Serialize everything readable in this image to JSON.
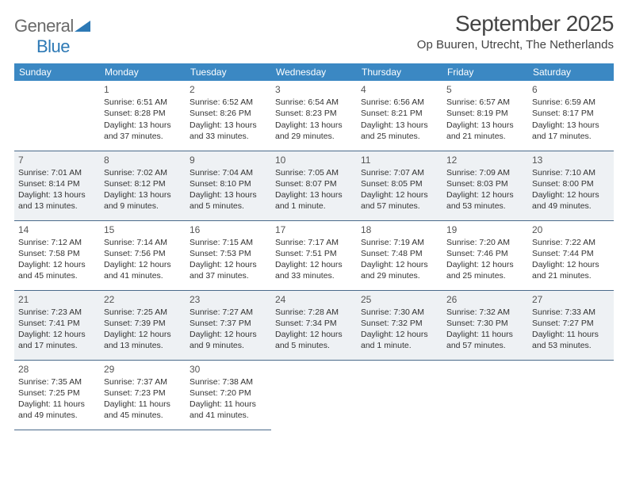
{
  "brand": {
    "part1": "General",
    "part2": "Blue"
  },
  "title": "September 2025",
  "location": "Op Buuren, Utrecht, The Netherlands",
  "colors": {
    "header_bg": "#3b88c3",
    "header_fg": "#ffffff",
    "shaded_bg": "#eef1f4",
    "rule": "#4a6a8a",
    "text": "#333333"
  },
  "weekdays": [
    "Sunday",
    "Monday",
    "Tuesday",
    "Wednesday",
    "Thursday",
    "Friday",
    "Saturday"
  ],
  "weeks": [
    {
      "shaded": false,
      "days": [
        {
          "n": "",
          "sunrise": "",
          "sunset": "",
          "daylight": ""
        },
        {
          "n": "1",
          "sunrise": "Sunrise: 6:51 AM",
          "sunset": "Sunset: 8:28 PM",
          "daylight": "Daylight: 13 hours and 37 minutes."
        },
        {
          "n": "2",
          "sunrise": "Sunrise: 6:52 AM",
          "sunset": "Sunset: 8:26 PM",
          "daylight": "Daylight: 13 hours and 33 minutes."
        },
        {
          "n": "3",
          "sunrise": "Sunrise: 6:54 AM",
          "sunset": "Sunset: 8:23 PM",
          "daylight": "Daylight: 13 hours and 29 minutes."
        },
        {
          "n": "4",
          "sunrise": "Sunrise: 6:56 AM",
          "sunset": "Sunset: 8:21 PM",
          "daylight": "Daylight: 13 hours and 25 minutes."
        },
        {
          "n": "5",
          "sunrise": "Sunrise: 6:57 AM",
          "sunset": "Sunset: 8:19 PM",
          "daylight": "Daylight: 13 hours and 21 minutes."
        },
        {
          "n": "6",
          "sunrise": "Sunrise: 6:59 AM",
          "sunset": "Sunset: 8:17 PM",
          "daylight": "Daylight: 13 hours and 17 minutes."
        }
      ]
    },
    {
      "shaded": true,
      "days": [
        {
          "n": "7",
          "sunrise": "Sunrise: 7:01 AM",
          "sunset": "Sunset: 8:14 PM",
          "daylight": "Daylight: 13 hours and 13 minutes."
        },
        {
          "n": "8",
          "sunrise": "Sunrise: 7:02 AM",
          "sunset": "Sunset: 8:12 PM",
          "daylight": "Daylight: 13 hours and 9 minutes."
        },
        {
          "n": "9",
          "sunrise": "Sunrise: 7:04 AM",
          "sunset": "Sunset: 8:10 PM",
          "daylight": "Daylight: 13 hours and 5 minutes."
        },
        {
          "n": "10",
          "sunrise": "Sunrise: 7:05 AM",
          "sunset": "Sunset: 8:07 PM",
          "daylight": "Daylight: 13 hours and 1 minute."
        },
        {
          "n": "11",
          "sunrise": "Sunrise: 7:07 AM",
          "sunset": "Sunset: 8:05 PM",
          "daylight": "Daylight: 12 hours and 57 minutes."
        },
        {
          "n": "12",
          "sunrise": "Sunrise: 7:09 AM",
          "sunset": "Sunset: 8:03 PM",
          "daylight": "Daylight: 12 hours and 53 minutes."
        },
        {
          "n": "13",
          "sunrise": "Sunrise: 7:10 AM",
          "sunset": "Sunset: 8:00 PM",
          "daylight": "Daylight: 12 hours and 49 minutes."
        }
      ]
    },
    {
      "shaded": false,
      "days": [
        {
          "n": "14",
          "sunrise": "Sunrise: 7:12 AM",
          "sunset": "Sunset: 7:58 PM",
          "daylight": "Daylight: 12 hours and 45 minutes."
        },
        {
          "n": "15",
          "sunrise": "Sunrise: 7:14 AM",
          "sunset": "Sunset: 7:56 PM",
          "daylight": "Daylight: 12 hours and 41 minutes."
        },
        {
          "n": "16",
          "sunrise": "Sunrise: 7:15 AM",
          "sunset": "Sunset: 7:53 PM",
          "daylight": "Daylight: 12 hours and 37 minutes."
        },
        {
          "n": "17",
          "sunrise": "Sunrise: 7:17 AM",
          "sunset": "Sunset: 7:51 PM",
          "daylight": "Daylight: 12 hours and 33 minutes."
        },
        {
          "n": "18",
          "sunrise": "Sunrise: 7:19 AM",
          "sunset": "Sunset: 7:48 PM",
          "daylight": "Daylight: 12 hours and 29 minutes."
        },
        {
          "n": "19",
          "sunrise": "Sunrise: 7:20 AM",
          "sunset": "Sunset: 7:46 PM",
          "daylight": "Daylight: 12 hours and 25 minutes."
        },
        {
          "n": "20",
          "sunrise": "Sunrise: 7:22 AM",
          "sunset": "Sunset: 7:44 PM",
          "daylight": "Daylight: 12 hours and 21 minutes."
        }
      ]
    },
    {
      "shaded": true,
      "days": [
        {
          "n": "21",
          "sunrise": "Sunrise: 7:23 AM",
          "sunset": "Sunset: 7:41 PM",
          "daylight": "Daylight: 12 hours and 17 minutes."
        },
        {
          "n": "22",
          "sunrise": "Sunrise: 7:25 AM",
          "sunset": "Sunset: 7:39 PM",
          "daylight": "Daylight: 12 hours and 13 minutes."
        },
        {
          "n": "23",
          "sunrise": "Sunrise: 7:27 AM",
          "sunset": "Sunset: 7:37 PM",
          "daylight": "Daylight: 12 hours and 9 minutes."
        },
        {
          "n": "24",
          "sunrise": "Sunrise: 7:28 AM",
          "sunset": "Sunset: 7:34 PM",
          "daylight": "Daylight: 12 hours and 5 minutes."
        },
        {
          "n": "25",
          "sunrise": "Sunrise: 7:30 AM",
          "sunset": "Sunset: 7:32 PM",
          "daylight": "Daylight: 12 hours and 1 minute."
        },
        {
          "n": "26",
          "sunrise": "Sunrise: 7:32 AM",
          "sunset": "Sunset: 7:30 PM",
          "daylight": "Daylight: 11 hours and 57 minutes."
        },
        {
          "n": "27",
          "sunrise": "Sunrise: 7:33 AM",
          "sunset": "Sunset: 7:27 PM",
          "daylight": "Daylight: 11 hours and 53 minutes."
        }
      ]
    },
    {
      "shaded": false,
      "days": [
        {
          "n": "28",
          "sunrise": "Sunrise: 7:35 AM",
          "sunset": "Sunset: 7:25 PM",
          "daylight": "Daylight: 11 hours and 49 minutes."
        },
        {
          "n": "29",
          "sunrise": "Sunrise: 7:37 AM",
          "sunset": "Sunset: 7:23 PM",
          "daylight": "Daylight: 11 hours and 45 minutes."
        },
        {
          "n": "30",
          "sunrise": "Sunrise: 7:38 AM",
          "sunset": "Sunset: 7:20 PM",
          "daylight": "Daylight: 11 hours and 41 minutes."
        },
        {
          "n": "",
          "sunrise": "",
          "sunset": "",
          "daylight": "",
          "trailing": true
        },
        {
          "n": "",
          "sunrise": "",
          "sunset": "",
          "daylight": "",
          "trailing": true
        },
        {
          "n": "",
          "sunrise": "",
          "sunset": "",
          "daylight": "",
          "trailing": true
        },
        {
          "n": "",
          "sunrise": "",
          "sunset": "",
          "daylight": "",
          "trailing": true
        }
      ]
    }
  ]
}
